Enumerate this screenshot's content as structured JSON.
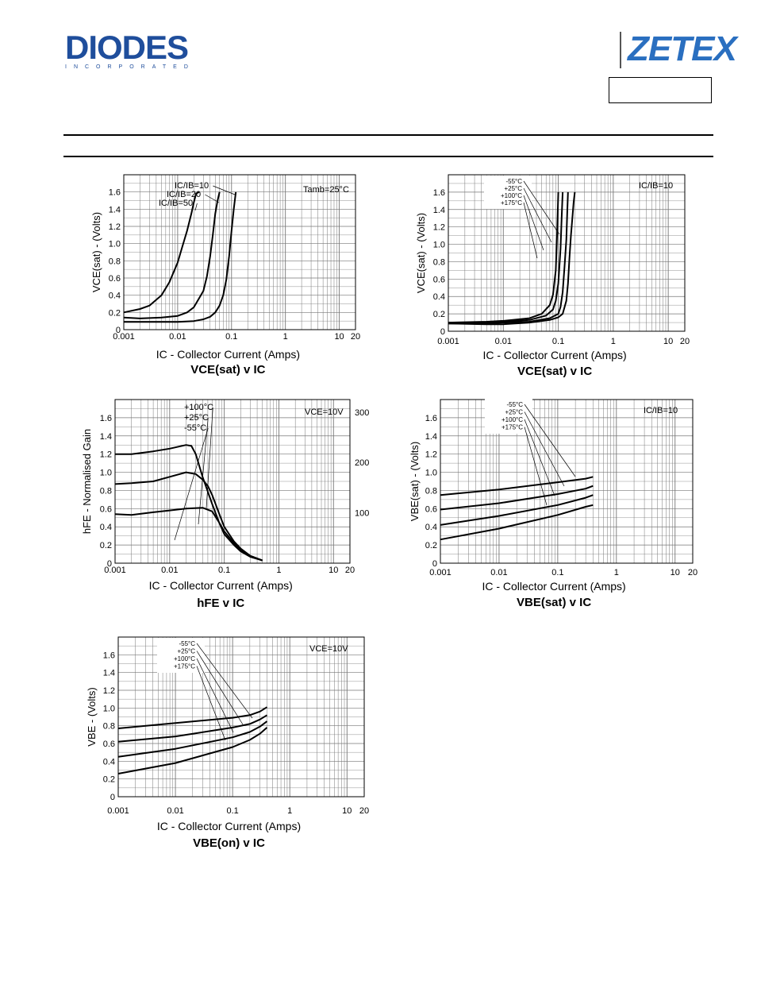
{
  "header": {
    "left_logo": "DIODES",
    "left_logo_sub": "INCORPORATED",
    "right_logo": "ZETEX",
    "part_number": ""
  },
  "chart_data": [
    {
      "id": "c1",
      "type": "line",
      "title": "VCE(sat) v IC",
      "xlabel": "IC - Collector Current (Amps)",
      "ylabel": "VCE(sat) - (Volts)",
      "xscale": "log",
      "xlim": [
        0.001,
        20
      ],
      "ylim": [
        0,
        1.8
      ],
      "x_ticks": [
        "0.001",
        "0.01",
        "0.1",
        "1",
        "10",
        "20"
      ],
      "y_ticks": [
        "0",
        "0.2",
        "0.4",
        "0.6",
        "0.8",
        "1.0",
        "1.2",
        "1.4",
        "1.6"
      ],
      "condition": "Tamb=25°C",
      "curve_labels": [
        "IC/IB=10",
        "IC/IB=20",
        "IC/IB=50"
      ],
      "series": [
        {
          "x": [
            0.001,
            0.002,
            0.005,
            0.01,
            0.02,
            0.03,
            0.04,
            0.05,
            0.06,
            0.07,
            0.08,
            0.09,
            0.1,
            0.11,
            0.12
          ],
          "y": [
            0.09,
            0.09,
            0.09,
            0.09,
            0.1,
            0.12,
            0.15,
            0.2,
            0.28,
            0.4,
            0.58,
            0.85,
            1.15,
            1.4,
            1.6
          ]
        },
        {
          "x": [
            0.001,
            0.002,
            0.005,
            0.01,
            0.015,
            0.02,
            0.03,
            0.035,
            0.04,
            0.045,
            0.05,
            0.055,
            0.06
          ],
          "y": [
            0.14,
            0.13,
            0.14,
            0.16,
            0.2,
            0.26,
            0.45,
            0.62,
            0.85,
            1.1,
            1.35,
            1.5,
            1.6
          ]
        },
        {
          "x": [
            0.001,
            0.002,
            0.003,
            0.005,
            0.007,
            0.01,
            0.012,
            0.015,
            0.018,
            0.02,
            0.022,
            0.025
          ],
          "y": [
            0.2,
            0.24,
            0.28,
            0.4,
            0.55,
            0.78,
            0.95,
            1.15,
            1.35,
            1.48,
            1.58,
            1.6
          ]
        }
      ]
    },
    {
      "id": "c2",
      "type": "line",
      "title": "VCE(sat) v IC",
      "xlabel": "IC - Collector Current (Amps)",
      "ylabel": "VCE(sat) - (Volts)",
      "xscale": "log",
      "xlim": [
        0.001,
        20
      ],
      "ylim": [
        0,
        1.8
      ],
      "x_ticks": [
        "0.001",
        "0.01",
        "0.1",
        "1",
        "10",
        "20"
      ],
      "y_ticks": [
        "0",
        "0.2",
        "0.4",
        "0.6",
        "0.8",
        "1.0",
        "1.2",
        "1.4",
        "1.6"
      ],
      "condition": "IC/IB=10",
      "curve_labels": [
        "-55°C",
        "+25°C",
        "+100°C",
        "+175°C"
      ],
      "series": [
        {
          "x": [
            0.001,
            0.005,
            0.01,
            0.03,
            0.07,
            0.1,
            0.12,
            0.14,
            0.15,
            0.16,
            0.17,
            0.18,
            0.19,
            0.2
          ],
          "y": [
            0.09,
            0.08,
            0.08,
            0.1,
            0.13,
            0.16,
            0.2,
            0.35,
            0.55,
            0.85,
            1.1,
            1.3,
            1.48,
            1.6
          ]
        },
        {
          "x": [
            0.001,
            0.005,
            0.01,
            0.03,
            0.07,
            0.1,
            0.11,
            0.12,
            0.13,
            0.14,
            0.145,
            0.15
          ],
          "y": [
            0.09,
            0.09,
            0.1,
            0.11,
            0.15,
            0.2,
            0.28,
            0.45,
            0.75,
            1.05,
            1.35,
            1.6
          ]
        },
        {
          "x": [
            0.001,
            0.005,
            0.01,
            0.03,
            0.06,
            0.08,
            0.09,
            0.1,
            0.11,
            0.115,
            0.12
          ],
          "y": [
            0.1,
            0.1,
            0.11,
            0.13,
            0.18,
            0.25,
            0.35,
            0.55,
            0.95,
            1.3,
            1.6
          ]
        },
        {
          "x": [
            0.001,
            0.005,
            0.01,
            0.03,
            0.05,
            0.07,
            0.08,
            0.09,
            0.095,
            0.1
          ],
          "y": [
            0.1,
            0.11,
            0.12,
            0.15,
            0.2,
            0.3,
            0.42,
            0.7,
            1.1,
            1.6
          ]
        }
      ]
    },
    {
      "id": "c3",
      "type": "line",
      "title": "hFE v IC",
      "xlabel": "IC - Collector Current (Amps)",
      "ylabel": "hFE - Normalised Gain",
      "xscale": "log",
      "xlim": [
        0.001,
        20
      ],
      "ylim": [
        0,
        1.8
      ],
      "x_ticks": [
        "0.001",
        "0.01",
        "0.1",
        "1",
        "10",
        "20"
      ],
      "y_ticks": [
        "0",
        "0.2",
        "0.4",
        "0.6",
        "0.8",
        "1.0",
        "1.2",
        "1.4",
        "1.6"
      ],
      "y2_ticks": [
        "100",
        "200",
        "300"
      ],
      "y2_values": [
        100,
        200,
        300
      ],
      "y2lim": [
        0,
        325
      ],
      "condition": "VCE=10V",
      "curve_labels": [
        "+100°C",
        "+25°C",
        "-55°C"
      ],
      "series": [
        {
          "x": [
            0.001,
            0.002,
            0.005,
            0.01,
            0.02,
            0.025,
            0.03,
            0.04,
            0.06,
            0.08,
            0.1,
            0.15,
            0.2,
            0.3,
            0.5
          ],
          "y": [
            1.2,
            1.2,
            1.23,
            1.26,
            1.3,
            1.29,
            1.2,
            0.95,
            0.65,
            0.45,
            0.32,
            0.2,
            0.13,
            0.07,
            0.03
          ]
        },
        {
          "x": [
            0.001,
            0.002,
            0.005,
            0.01,
            0.02,
            0.03,
            0.04,
            0.05,
            0.06,
            0.08,
            0.1,
            0.15,
            0.2,
            0.3,
            0.5
          ],
          "y": [
            0.87,
            0.88,
            0.9,
            0.95,
            1.0,
            0.98,
            0.92,
            0.85,
            0.75,
            0.55,
            0.4,
            0.24,
            0.16,
            0.08,
            0.03
          ]
        },
        {
          "x": [
            0.001,
            0.002,
            0.005,
            0.01,
            0.02,
            0.04,
            0.06,
            0.08,
            0.1,
            0.15,
            0.2,
            0.3,
            0.5
          ],
          "y": [
            0.54,
            0.53,
            0.56,
            0.58,
            0.6,
            0.61,
            0.57,
            0.45,
            0.35,
            0.22,
            0.15,
            0.08,
            0.03
          ]
        }
      ]
    },
    {
      "id": "c4",
      "type": "line",
      "title": "VBE(sat) v IC",
      "xlabel": "IC - Collector Current (Amps)",
      "ylabel": "VBE(sat) - (Volts)",
      "xscale": "log",
      "xlim": [
        0.001,
        20
      ],
      "ylim": [
        0,
        1.8
      ],
      "x_ticks": [
        "0.001",
        "0.01",
        "0.1",
        "1",
        "10",
        "20"
      ],
      "y_ticks": [
        "0",
        "0.2",
        "0.4",
        "0.6",
        "0.8",
        "1.0",
        "1.2",
        "1.4",
        "1.6"
      ],
      "condition": "IC/IB=10",
      "curve_labels": [
        "-55°C",
        "+25°C",
        "+100°C",
        "+175°C"
      ],
      "series": [
        {
          "x": [
            0.001,
            0.01,
            0.1,
            0.3,
            0.4
          ],
          "y": [
            0.75,
            0.81,
            0.89,
            0.93,
            0.95
          ]
        },
        {
          "x": [
            0.001,
            0.01,
            0.1,
            0.3,
            0.4
          ],
          "y": [
            0.59,
            0.66,
            0.76,
            0.82,
            0.85
          ]
        },
        {
          "x": [
            0.001,
            0.01,
            0.1,
            0.3,
            0.4
          ],
          "y": [
            0.42,
            0.52,
            0.64,
            0.72,
            0.75
          ]
        },
        {
          "x": [
            0.001,
            0.01,
            0.1,
            0.3,
            0.4
          ],
          "y": [
            0.26,
            0.38,
            0.53,
            0.62,
            0.64
          ]
        }
      ]
    },
    {
      "id": "c5",
      "type": "line",
      "title": "VBE(on) v IC",
      "xlabel": "IC - Collector Current (Amps)",
      "ylabel": "VBE - (Volts)",
      "xscale": "log",
      "xlim": [
        0.001,
        20
      ],
      "ylim": [
        0,
        1.8
      ],
      "x_ticks": [
        "0.001",
        "0.01",
        "0.1",
        "1",
        "10",
        "20"
      ],
      "y_ticks": [
        "0",
        "0.2",
        "0.4",
        "0.6",
        "0.8",
        "1.0",
        "1.2",
        "1.4",
        "1.6"
      ],
      "condition": "VCE=10V",
      "curve_labels": [
        "-55°C",
        "+25°C",
        "+100°C",
        "+175°C"
      ],
      "series": [
        {
          "x": [
            0.001,
            0.01,
            0.1,
            0.2,
            0.3,
            0.4
          ],
          "y": [
            0.77,
            0.83,
            0.89,
            0.92,
            0.96,
            1.01
          ]
        },
        {
          "x": [
            0.001,
            0.01,
            0.1,
            0.2,
            0.3,
            0.4
          ],
          "y": [
            0.62,
            0.68,
            0.78,
            0.82,
            0.87,
            0.92
          ]
        },
        {
          "x": [
            0.001,
            0.01,
            0.1,
            0.2,
            0.3,
            0.4
          ],
          "y": [
            0.45,
            0.54,
            0.67,
            0.73,
            0.79,
            0.85
          ]
        },
        {
          "x": [
            0.001,
            0.01,
            0.1,
            0.2,
            0.3,
            0.4
          ],
          "y": [
            0.26,
            0.38,
            0.56,
            0.64,
            0.71,
            0.78
          ]
        }
      ]
    }
  ]
}
